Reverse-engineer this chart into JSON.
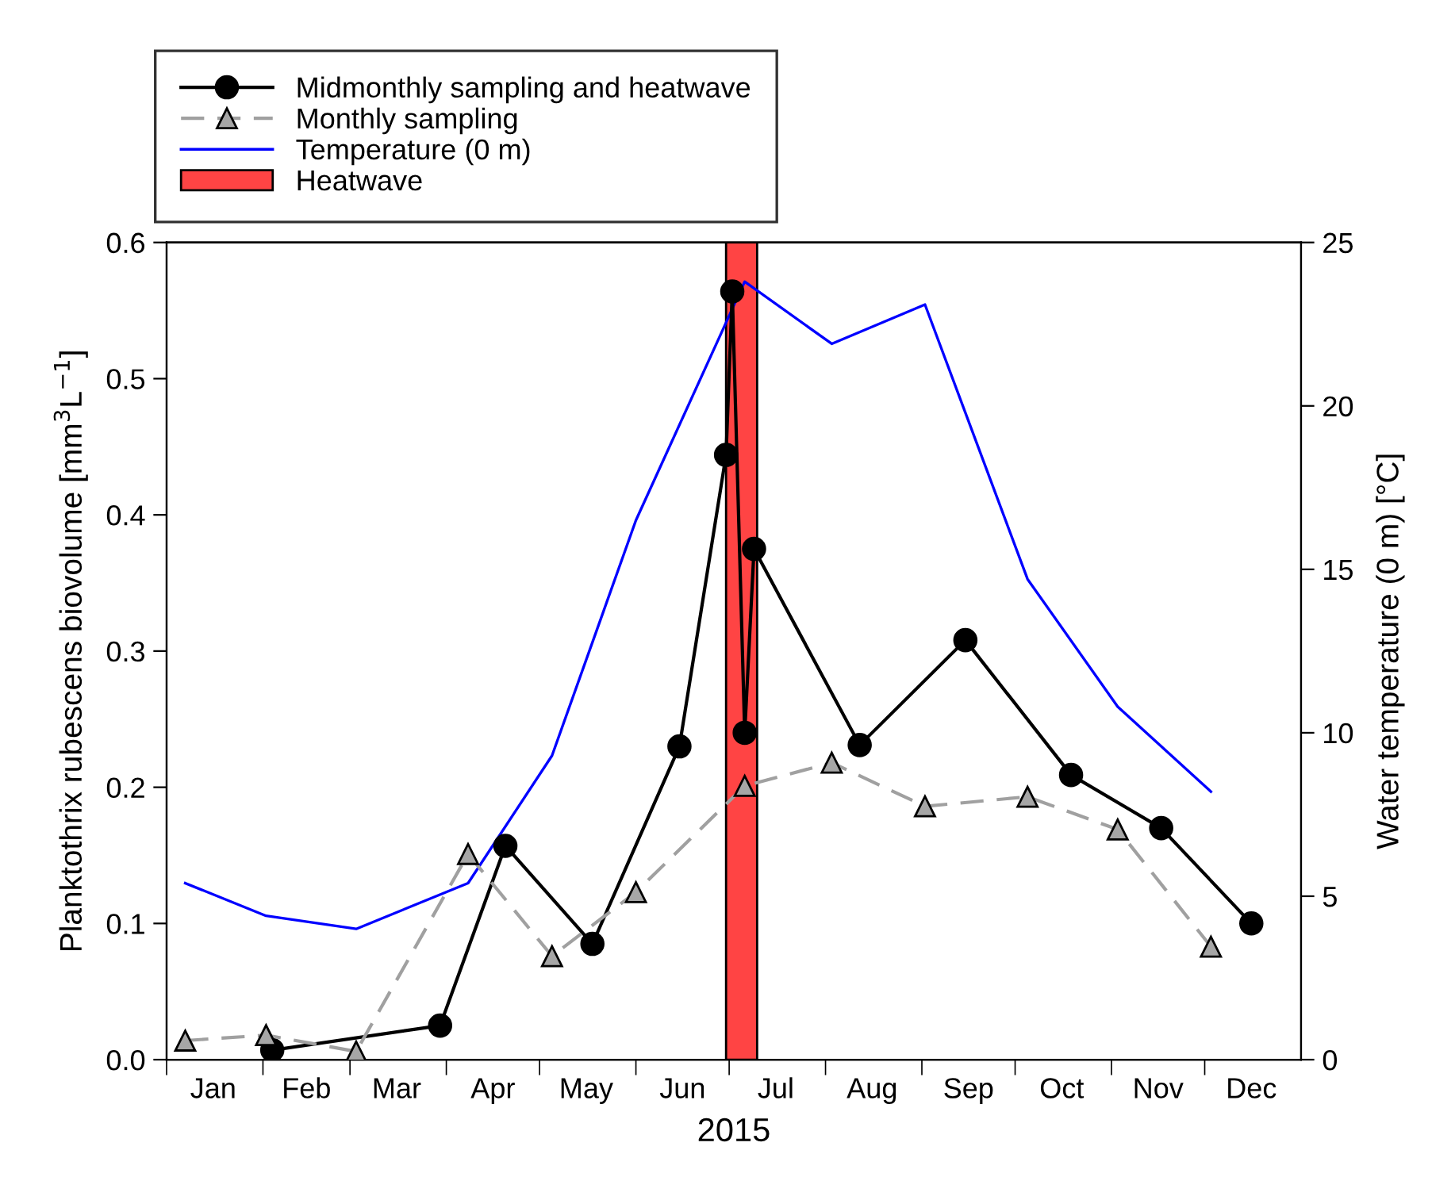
{
  "chart_data": {
    "type": "line",
    "xlabel": "2015",
    "ylabel": "Planktothrix rubescens biovolume [mm$^{3}$L$^{−1}$]",
    "y2label": "Water temperature (0 m) [°C]",
    "xlim": [
      "2015-01-01",
      "2016-01-01"
    ],
    "xticks": [
      {
        "value": "2015-01-01",
        "label": null
      },
      {
        "value": "2015-02-01",
        "label": null
      },
      {
        "value": "2015-03-01",
        "label": null
      },
      {
        "value": "2015-04-01",
        "label": null
      },
      {
        "value": "2015-05-01",
        "label": null
      },
      {
        "value": "2015-06-01",
        "label": null
      },
      {
        "value": "2015-07-01",
        "label": null
      },
      {
        "value": "2015-08-01",
        "label": null
      },
      {
        "value": "2015-09-01",
        "label": null
      },
      {
        "value": "2015-10-01",
        "label": null
      },
      {
        "value": "2015-11-01",
        "label": null
      },
      {
        "value": "2015-12-01",
        "label": null
      },
      {
        "value": "2015-01-16",
        "label": "Jan"
      },
      {
        "value": "2015-02-15",
        "label": "Feb"
      },
      {
        "value": "2015-03-16",
        "label": "Mar"
      },
      {
        "value": "2015-04-16",
        "label": "Apr"
      },
      {
        "value": "2015-05-16",
        "label": "May"
      },
      {
        "value": "2015-06-16",
        "label": "Jun"
      },
      {
        "value": "2015-07-16",
        "label": "Jul"
      },
      {
        "value": "2015-08-16",
        "label": "Aug"
      },
      {
        "value": "2015-09-16",
        "label": "Sep"
      },
      {
        "value": "2015-10-16",
        "label": "Oct"
      },
      {
        "value": "2015-11-16",
        "label": "Nov"
      },
      {
        "value": "2015-12-16",
        "label": "Dec"
      }
    ],
    "ylim": [
      0,
      0.6
    ],
    "yticks": [
      {
        "value": 0,
        "label": "0.0"
      },
      0.1,
      0.2,
      0.3,
      0.4,
      0.5,
      0.6
    ],
    "y2lim": [
      0,
      25
    ],
    "y2ticks": [
      0,
      5,
      10,
      15,
      20,
      25
    ],
    "grid": false,
    "legend": "top left",
    "bands": [
      {
        "axis": "x",
        "from": "2015-06-30",
        "to": "2015-07-10",
        "label": "Heatwave",
        "color": "#ff4444"
      }
    ],
    "series": [
      {
        "name": "Midmonthly sampling and heatwave",
        "color": "#000000",
        "marker": "circle",
        "line_style": "solid",
        "x": [
          "2015-02-04",
          "2015-03-30",
          "2015-04-20",
          "2015-05-18",
          "2015-06-15",
          "2015-06-30",
          "2015-07-02",
          "2015-07-06",
          "2015-07-09",
          "2015-08-12",
          "2015-09-15",
          "2015-10-19",
          "2015-11-17",
          "2015-12-16"
        ],
        "values": [
          0.007,
          0.025,
          0.157,
          0.085,
          0.23,
          0.444,
          0.564,
          0.24,
          0.375,
          0.231,
          0.308,
          0.209,
          0.17,
          0.1
        ]
      },
      {
        "name": "Monthly sampling",
        "color": "#a0a0a0",
        "marker": "triangle",
        "line_style": "dashed",
        "x": [
          "2015-01-07",
          "2015-02-02",
          "2015-03-03",
          "2015-04-08",
          "2015-05-05",
          "2015-06-01",
          "2015-07-06",
          "2015-08-03",
          "2015-09-02",
          "2015-10-05",
          "2015-11-03",
          "2015-12-03"
        ],
        "values": [
          0.014,
          0.018,
          0.006,
          0.151,
          0.076,
          0.123,
          0.201,
          0.218,
          0.186,
          0.193,
          0.169,
          0.083
        ]
      },
      {
        "name": "Temperature (0 m)",
        "color": "#0000ff",
        "marker": "none",
        "line_style": "solid",
        "axis": "y2",
        "x": [
          "2015-01-07",
          "2015-02-02",
          "2015-03-03",
          "2015-04-08",
          "2015-05-05",
          "2015-06-01",
          "2015-07-06",
          "2015-08-03",
          "2015-09-02",
          "2015-10-05",
          "2015-11-03",
          "2015-12-03"
        ],
        "values": [
          5.4,
          4.4,
          4.0,
          5.4,
          9.3,
          16.5,
          23.8,
          21.9,
          23.1,
          14.7,
          10.8,
          8.2
        ]
      }
    ]
  }
}
